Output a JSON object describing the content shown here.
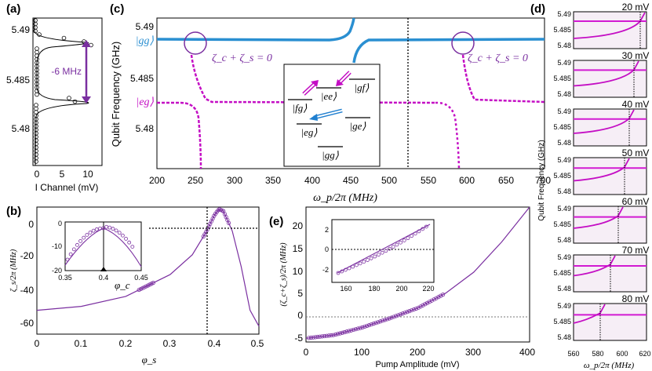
{
  "panel_labels": {
    "a": "(a)",
    "b": "(b)",
    "c": "(c)",
    "d": "(d)",
    "e": "(e)"
  },
  "colors": {
    "blue": "#2a8fd1",
    "magenta": "#c40ec4",
    "purple": "#7a2fa0",
    "purple_fill": "#b07acb",
    "sweep_bg": "#f3e8f3"
  },
  "panel_a": {
    "xlabel": "I Channel (mV)",
    "yticks": [
      "5.49",
      "5.485",
      "5.48"
    ],
    "xticks": [
      "0",
      "5",
      "10"
    ],
    "annotation": "-6 MHz"
  },
  "panel_c": {
    "ylabel": "Qubit Frequency (GHz)",
    "yticks": [
      "5.49",
      "5.485",
      "5.48"
    ],
    "xticks": [
      "200",
      "250",
      "300",
      "350",
      "400",
      "450",
      "500",
      "550",
      "600",
      "650",
      "700"
    ],
    "xlabel": "ω_p/2π (MHz)",
    "state_top": "|gg⟩",
    "state_bottom": "|eg⟩",
    "condition_left": "ζ_c + ζ_s = 0",
    "condition_right": "ζ_c + ζ_s = 0",
    "inset_levels": {
      "gf": "|gf⟩",
      "ee": "|ee⟩",
      "fg": "|fg⟩",
      "ge": "|ge⟩",
      "eg": "|eg⟩",
      "gg": "|gg⟩"
    }
  },
  "panel_d": {
    "titles": [
      "20 mV",
      "30 mV",
      "40 mV",
      "50 mV",
      "60 mV",
      "70 mV",
      "80 mV"
    ],
    "yticks": [
      "5.49",
      "5.485",
      "5.48"
    ],
    "xticks": [
      "560",
      "580",
      "600",
      "620"
    ],
    "ylabel": "Qubit Frequency (GHz)",
    "xlabel": "ω_p/2π (MHz)"
  },
  "panel_b": {
    "ylabel": "ζ_s/2π (MHz)",
    "xlabel": "φ_s",
    "yticks": [
      "0",
      "-20",
      "-40",
      "-60"
    ],
    "xticks": [
      "0",
      "0.1",
      "0.2",
      "0.3",
      "0.4",
      "0.5"
    ],
    "inset": {
      "yticks": [
        "0",
        "-10",
        "-20"
      ],
      "xticks": [
        "0.35",
        "0.4",
        "0.45"
      ],
      "annotation": "φ_c"
    }
  },
  "panel_e": {
    "ylabel": "(ζ_c+ζ_s)/2π (MHz)",
    "xlabel": "Pump Amplitude (mV)",
    "yticks": [
      "20",
      "15",
      "10",
      "5",
      "0",
      "-5"
    ],
    "xticks": [
      "0",
      "100",
      "200",
      "300",
      "400"
    ],
    "inset": {
      "yticks": [
        "2",
        "0",
        "-2"
      ],
      "xticks": [
        "160",
        "180",
        "200",
        "220"
      ]
    }
  },
  "chart_data": [
    {
      "type": "line",
      "panel": "a",
      "xlabel": "I Channel (mV)",
      "ylabel": "Qubit Frequency (GHz)",
      "x_range": [
        0,
        13
      ],
      "y_range": [
        5.4775,
        5.4915
      ],
      "description_points": {
        "y": [
          5.4775,
          5.4835,
          5.489,
          5.4895,
          5.4915
        ],
        "x": [
          0.3,
          11,
          0.3,
          11,
          0.3
        ]
      },
      "annotation": "-6 MHz"
    },
    {
      "type": "scatter",
      "panel": "c",
      "xlabel": "ω_p/2π (MHz)",
      "ylabel": "Qubit Frequency (GHz)",
      "x_range": [
        200,
        700
      ],
      "y_range": [
        5.4765,
        5.4915
      ],
      "series": [
        {
          "name": "|gg⟩",
          "level": 5.4882
        },
        {
          "name": "|eg⟩",
          "level": 5.4825
        }
      ],
      "marker_x": 540
    },
    {
      "type": "scatter",
      "panel": "b",
      "xlabel": "φ_s",
      "ylabel": "ζ_s/2π (MHz)",
      "x_range": [
        0,
        0.5
      ],
      "y_range": [
        -66,
        -2
      ],
      "curve_x": [
        0,
        0.1,
        0.2,
        0.3,
        0.35,
        0.38,
        0.4,
        0.41,
        0.42,
        0.44,
        0.46,
        0.48,
        0.5
      ],
      "curve_y": [
        -54,
        -52,
        -47,
        -36,
        -26,
        -15,
        -6,
        -3,
        -4,
        -14,
        -32,
        -54,
        -62
      ],
      "marker_x": 0.385,
      "marker_y": -8
    },
    {
      "type": "scatter",
      "panel": "e",
      "xlabel": "Pump Amplitude (mV)",
      "ylabel": "(ζ_c+ζ_s)/2π (MHz)",
      "x_range": [
        0,
        400
      ],
      "y_range": [
        -7,
        22
      ],
      "curve_x": [
        0,
        50,
        100,
        150,
        200,
        250,
        300,
        350,
        400
      ],
      "curve_y": [
        -6.2,
        -5.5,
        -3.9,
        -1.9,
        0.3,
        3.5,
        8.0,
        14.5,
        22.0
      ]
    }
  ]
}
